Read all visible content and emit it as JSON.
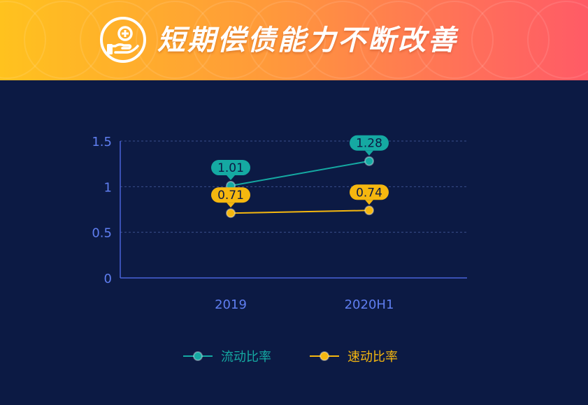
{
  "header": {
    "title": "短期偿债能力不断改善",
    "icon": "hand-coin-icon"
  },
  "colors": {
    "background": "#0c1a44",
    "axis": "#4a63d8",
    "tick_text": "#5f7ef0",
    "grid": "#3a4f8c",
    "current_ratio": "#15a9a2",
    "quick_ratio": "#f5b70f",
    "label_text": "#0c1a44"
  },
  "chart_data": {
    "type": "line",
    "title": "短期偿债能力不断改善",
    "categories": [
      "2019",
      "2020H1"
    ],
    "series": [
      {
        "name": "流动比率",
        "values": [
          1.01,
          1.28
        ],
        "labels": [
          "1.01",
          "1.28"
        ],
        "color": "#15a9a2"
      },
      {
        "name": "速动比率",
        "values": [
          0.71,
          0.74
        ],
        "labels": [
          "0.71",
          "0.74"
        ],
        "color": "#f5b70f"
      }
    ],
    "ylim": [
      0,
      1.5
    ],
    "yticks": [
      "0",
      "0.5",
      "1",
      "1.5"
    ],
    "ytick_values": [
      0,
      0.5,
      1,
      1.5
    ],
    "xlabel": "",
    "ylabel": "",
    "grid": true,
    "legend": "bottom-center"
  }
}
